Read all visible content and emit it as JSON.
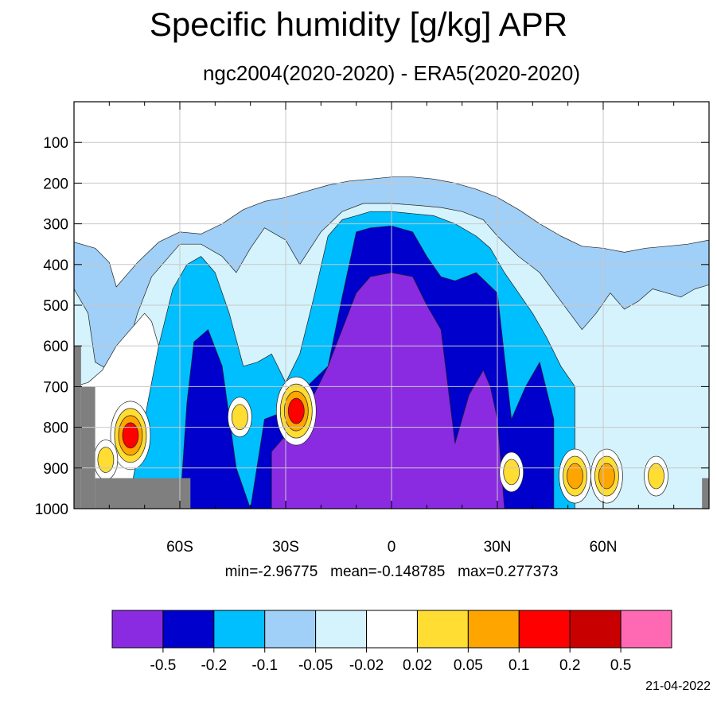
{
  "title": "Specific humidity [g/kg] APR",
  "subtitle": "ngc2004(2020-2020) - ERA5(2020-2020)",
  "stats": "min=-2.96775   mean=-0.148785   max=0.277373",
  "date": "21-04-2022",
  "chart_data": {
    "type": "heatmap",
    "x_axis": {
      "range": [
        -90,
        90
      ],
      "ticks": [
        -60,
        -30,
        0,
        30,
        60
      ],
      "tick_labels": [
        "60S",
        "30S",
        "0",
        "30N",
        "60N"
      ]
    },
    "y_axis": {
      "range": [
        1000,
        0
      ],
      "ticks": [
        100,
        200,
        300,
        400,
        500,
        600,
        700,
        800,
        900,
        1000
      ],
      "tick_labels": [
        "100",
        "200",
        "300",
        "400",
        "500",
        "600",
        "700",
        "800",
        "900",
        "1000"
      ]
    },
    "grid": true,
    "missing_color": "#7f7f7f",
    "colorbar": {
      "colors": [
        "#8a2be2",
        "#0000cd",
        "#00bfff",
        "#a0cff7",
        "#d5f3fd",
        "#ffffff",
        "#ffdd33",
        "#ffa500",
        "#ff0000",
        "#c80000",
        "#ff69b4"
      ],
      "levels": [
        "-0.5",
        "-0.2",
        "-0.1",
        "-0.05",
        "-0.02",
        "0.02",
        "0.05",
        "0.1",
        "0.2",
        "0.5"
      ]
    },
    "regions": [
      {
        "class": 3,
        "lat": [
          -90,
          -84,
          -80,
          -78,
          -72,
          -66,
          -60,
          -54,
          -48,
          -42,
          -36,
          -30,
          -24,
          -18,
          -12,
          -6,
          0,
          6,
          12,
          18,
          24,
          30,
          36,
          42,
          48,
          54,
          60,
          66,
          72,
          78,
          84,
          90
        ],
        "p_top": [
          345,
          360,
          395,
          455,
          395,
          345,
          320,
          325,
          300,
          265,
          245,
          235,
          220,
          205,
          195,
          190,
          185,
          185,
          190,
          200,
          215,
          235,
          265,
          300,
          330,
          355,
          360,
          370,
          360,
          355,
          350,
          340
        ],
        "p_bot": 1000
      },
      {
        "class": 4,
        "lat": [
          -90,
          -86,
          -84,
          -80,
          -76,
          -72,
          -68,
          -64,
          -60,
          -54,
          -48,
          -44,
          -40,
          -36,
          -30,
          -26,
          -20,
          -14,
          -8,
          0,
          8,
          14,
          20,
          26,
          30,
          36,
          42,
          48,
          54,
          58,
          62,
          66,
          70,
          74,
          78,
          82,
          86,
          90
        ],
        "p_top": [
          460,
          520,
          640,
          660,
          640,
          520,
          430,
          390,
          350,
          350,
          380,
          420,
          360,
          310,
          340,
          400,
          320,
          270,
          250,
          250,
          255,
          260,
          270,
          290,
          330,
          380,
          420,
          490,
          560,
          520,
          470,
          510,
          490,
          460,
          470,
          480,
          460,
          450
        ],
        "p_bot": 1000
      },
      {
        "class": 5,
        "lat": [
          -90,
          -86,
          -82,
          -78,
          -74,
          -70,
          -68,
          -66,
          -62,
          -58,
          -56,
          -54
        ],
        "p_top": [
          700,
          690,
          660,
          600,
          560,
          520,
          540,
          600,
          720,
          820,
          900,
          960
        ],
        "p_bot": 1000
      },
      {
        "class": 2,
        "lat": [
          -74,
          -70,
          -66,
          -62,
          -58,
          -54,
          -50,
          -46,
          -42,
          -38,
          -34,
          -30,
          -26,
          -22,
          -18,
          -14,
          -10,
          -6,
          0,
          6,
          12,
          18,
          24,
          28,
          32,
          36,
          40,
          44,
          48,
          52
        ],
        "p_top": [
          960,
          780,
          600,
          460,
          400,
          380,
          420,
          520,
          650,
          640,
          620,
          690,
          620,
          480,
          330,
          290,
          280,
          270,
          270,
          275,
          280,
          300,
          330,
          360,
          420,
          470,
          520,
          580,
          650,
          700
        ],
        "p_bot": 1000
      },
      {
        "class": 1,
        "lat": [
          -60,
          -58,
          -56,
          -52,
          -48,
          -44,
          -40,
          -36,
          -30,
          -24,
          -18,
          -14,
          -10,
          -6,
          0,
          6,
          10,
          14,
          18,
          24,
          30,
          34,
          38,
          42,
          46
        ],
        "p_top": [
          1000,
          740,
          590,
          560,
          650,
          900,
          1000,
          780,
          760,
          700,
          650,
          480,
          320,
          310,
          305,
          320,
          380,
          430,
          440,
          420,
          470,
          780,
          700,
          640,
          780
        ],
        "p_bot": 1000
      },
      {
        "class": 0,
        "lat": [
          -34,
          -30,
          -26,
          -22,
          -18,
          -14,
          -10,
          -6,
          0,
          6,
          10,
          14,
          18,
          22,
          26,
          28,
          30,
          32
        ],
        "p_top": [
          860,
          820,
          760,
          720,
          650,
          560,
          470,
          430,
          420,
          430,
          500,
          560,
          840,
          720,
          660,
          700,
          780,
          1000
        ],
        "p_bot": 1000
      }
    ],
    "hotspots": [
      {
        "lat": -74,
        "p": 820,
        "levels": [
          5,
          6,
          7,
          8
        ]
      },
      {
        "lat": -81,
        "p": 880,
        "levels": [
          5,
          6
        ]
      },
      {
        "lat": -27,
        "p": 760,
        "levels": [
          5,
          6,
          7,
          8
        ]
      },
      {
        "lat": -43,
        "p": 775,
        "levels": [
          5,
          6
        ]
      },
      {
        "lat": 34,
        "p": 910,
        "levels": [
          5,
          6
        ]
      },
      {
        "lat": 52,
        "p": 920,
        "levels": [
          5,
          6,
          7
        ]
      },
      {
        "lat": 61,
        "p": 920,
        "levels": [
          5,
          6,
          7
        ]
      },
      {
        "lat": 75,
        "p": 920,
        "levels": [
          5,
          6
        ]
      }
    ],
    "missing_regions": [
      {
        "lat": [
          -90,
          -88
        ],
        "p_top": 600,
        "p_bot": 1000
      },
      {
        "lat": [
          -88,
          -84
        ],
        "p_top": 700,
        "p_bot": 1000
      },
      {
        "lat": [
          -84,
          -57
        ],
        "p_top": 925,
        "p_bot": 1000
      },
      {
        "lat": [
          88,
          90
        ],
        "p_top": 925,
        "p_bot": 1000
      }
    ]
  }
}
